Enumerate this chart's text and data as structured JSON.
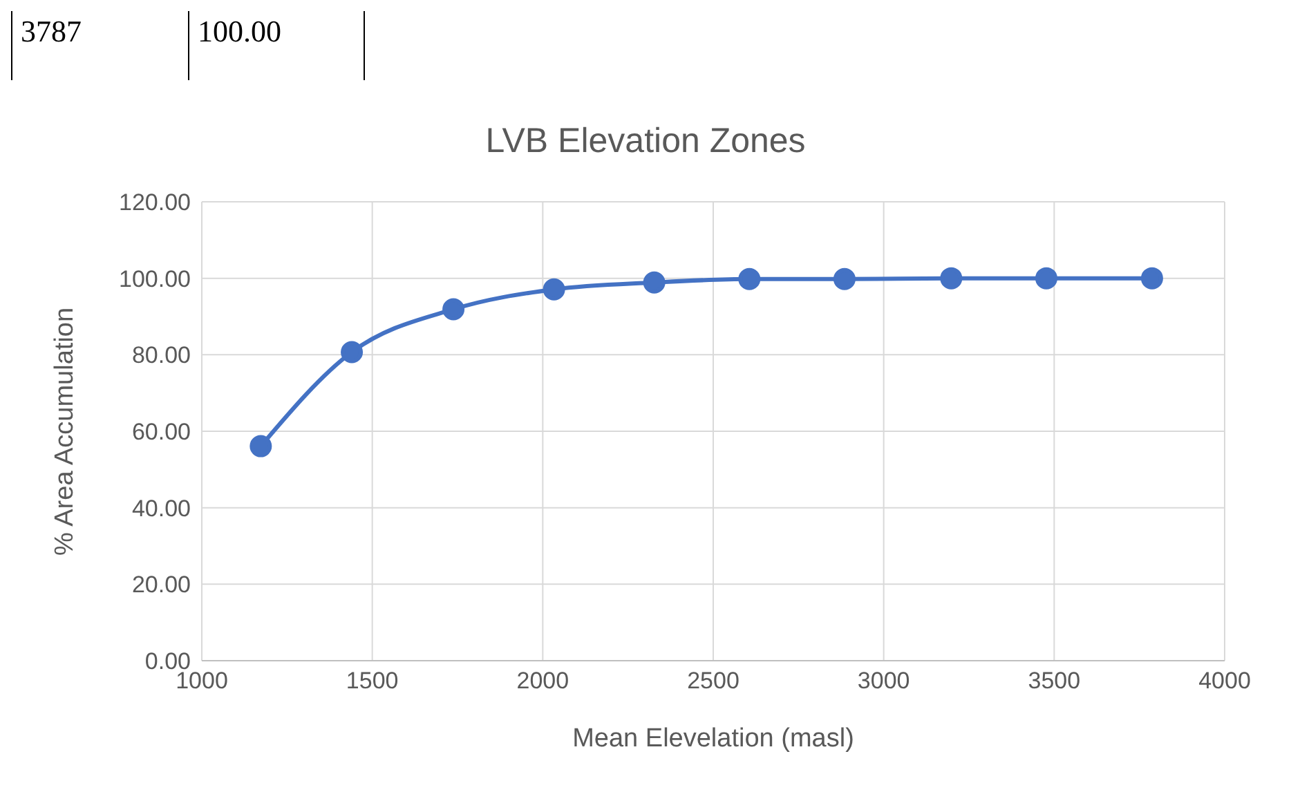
{
  "chart_data": {
    "type": "line",
    "title": "LVB Elevation Zones",
    "xlabel": "Mean Elevelation (masl)",
    "ylabel": "% Area Accumulation",
    "annotations": [
      "3787",
      "100.00"
    ],
    "x": [
      1173,
      1440,
      1738,
      2033,
      2327,
      2606,
      2885,
      3198,
      3477,
      3787
    ],
    "series": [
      {
        "color": "#4472c4",
        "values": [
          56.1,
          80.7,
          91.9,
          97.1,
          98.9,
          99.8,
          99.8,
          100,
          100,
          100
        ]
      }
    ],
    "xlim": [
      1000,
      4000
    ],
    "xticks": [
      1000,
      1500,
      2000,
      2500,
      3000,
      3500,
      4000
    ],
    "ylim": [
      0,
      120
    ],
    "yticks": [
      {
        "value": 0,
        "label": "0.00"
      },
      {
        "value": 20,
        "label": "20.00"
      },
      {
        "value": 40,
        "label": "40.00"
      },
      {
        "value": 60,
        "label": "60.00"
      },
      {
        "value": 80,
        "label": "80.00"
      },
      {
        "value": 100,
        "label": "100.00"
      },
      {
        "value": 120,
        "label": "120.00"
      }
    ],
    "grid": true,
    "marker": "circle",
    "line_style": "solid",
    "legend": false
  }
}
